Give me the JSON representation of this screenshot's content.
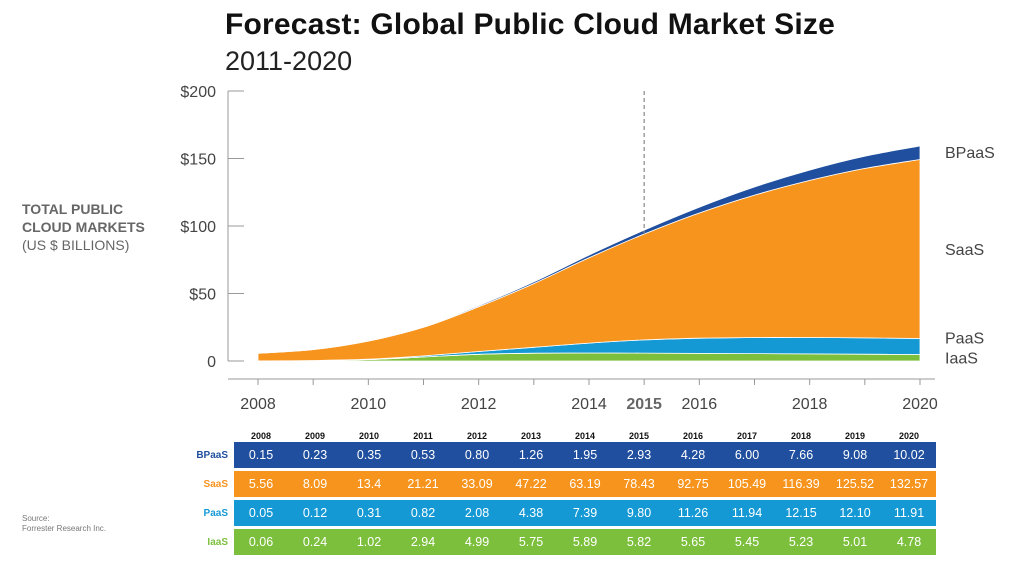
{
  "chart_data": {
    "type": "area",
    "stacked": true,
    "title": "Forecast: Global Public Cloud Market Size",
    "subtitle": "2011-2020",
    "ylabel_line1": "TOTAL PUBLIC",
    "ylabel_line2": "CLOUD MARKETS",
    "ylabel_line3": "(US $ BILLIONS)",
    "x": [
      "2008",
      "2009",
      "2010",
      "2011",
      "2012",
      "2013",
      "2014",
      "2015",
      "2016",
      "2017",
      "2018",
      "2019",
      "2020"
    ],
    "x_tick_labels": [
      "2008",
      "2010",
      "2012",
      "2014",
      "2015",
      "2016",
      "2018",
      "2020"
    ],
    "highlight_year": "2015",
    "y_ticks": [
      "$200",
      "$150",
      "$100",
      "$50",
      "0"
    ],
    "ylim": [
      0,
      200
    ],
    "series": [
      {
        "name": "IaaS",
        "label": "IaaS",
        "table_label": "IaaS",
        "color": "#7cbf3c",
        "values": [
          "0.06",
          "0.24",
          "1.02",
          "2.94",
          "4.99",
          "5.75",
          "5.89",
          "5.82",
          "5.65",
          "5.45",
          "5.23",
          "5.01",
          "4.78"
        ]
      },
      {
        "name": "PaaS",
        "label": "PaaS",
        "table_label": "PaaS",
        "color": "#1499d5",
        "values": [
          "0.05",
          "0.12",
          "0.31",
          "0.82",
          "2.08",
          "4.38",
          "7.39",
          "9.80",
          "11.26",
          "11.94",
          "12.15",
          "12.10",
          "11.91"
        ]
      },
      {
        "name": "SaaS",
        "label": "SaaS",
        "table_label": "SaaS",
        "color": "#f7941d",
        "values": [
          "5.56",
          "8.09",
          "13.4",
          "21.21",
          "33.09",
          "47.22",
          "63.19",
          "78.43",
          "92.75",
          "105.49",
          "116.39",
          "125.52",
          "132.57"
        ]
      },
      {
        "name": "BPaaS",
        "label": "BPaaS",
        "table_label": "BPaaS",
        "color": "#1f4f9e",
        "values": [
          "0.15",
          "0.23",
          "0.35",
          "0.53",
          "0.80",
          "1.26",
          "1.95",
          "2.93",
          "4.28",
          "6.00",
          "7.66",
          "9.08",
          "10.02"
        ]
      }
    ],
    "table_order": [
      "BPaaS",
      "SaaS",
      "PaaS",
      "IaaS"
    ]
  },
  "source_line1": "Source:",
  "source_line2": "Forrester Research Inc."
}
